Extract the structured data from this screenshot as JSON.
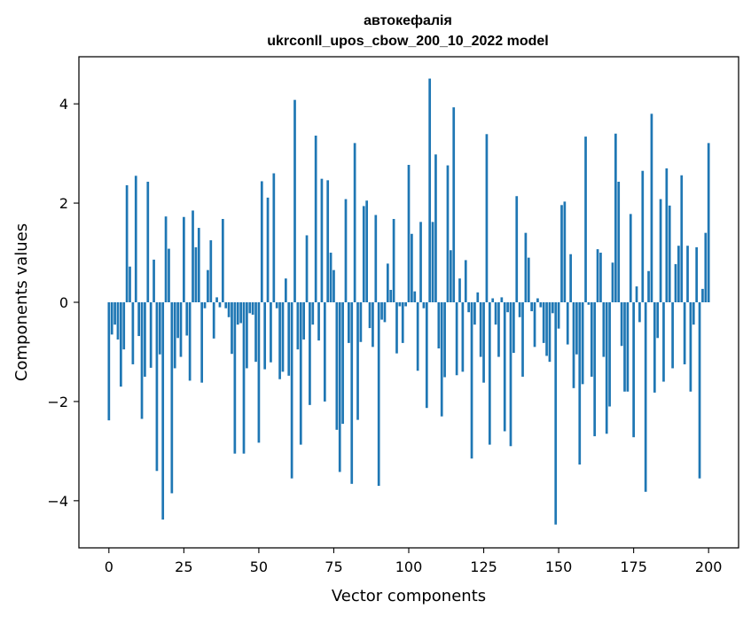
{
  "chart_data": {
    "type": "bar",
    "title": "автокефалія",
    "subtitle": "ukrconll_upos_cbow_200_10_2022 model",
    "xlabel": "Vector components",
    "ylabel": "Components values",
    "xlim": [
      -10,
      210
    ],
    "ylim": [
      -4.95,
      4.95
    ],
    "xticks": [
      0,
      25,
      50,
      75,
      100,
      125,
      150,
      175,
      200
    ],
    "yticks": [
      -4,
      -2,
      0,
      2,
      4
    ],
    "ytick_labels": [
      "−4",
      "−2",
      "0",
      "2",
      "4"
    ],
    "bar_color": "#1f77b4",
    "grid": false,
    "legend": "none",
    "values": [
      -2.38,
      -0.65,
      -0.45,
      -0.75,
      -1.7,
      -0.95,
      2.36,
      0.72,
      -1.25,
      2.55,
      -0.68,
      -2.35,
      -1.5,
      2.43,
      -1.32,
      0.86,
      -3.4,
      -1.05,
      -4.38,
      1.73,
      1.08,
      -3.85,
      -1.33,
      -0.72,
      -1.1,
      1.72,
      -0.67,
      -1.58,
      1.85,
      1.11,
      1.5,
      -1.62,
      -0.12,
      0.65,
      1.25,
      -0.73,
      0.1,
      -0.1,
      1.68,
      -0.12,
      -0.3,
      -1.04,
      -3.05,
      -0.45,
      -0.42,
      -3.05,
      -1.33,
      -0.22,
      -0.25,
      -1.2,
      -2.83,
      2.44,
      -1.35,
      2.11,
      -1.21,
      2.6,
      -0.12,
      -1.55,
      -1.4,
      0.48,
      -1.48,
      -3.55,
      4.08,
      -0.95,
      -2.87,
      -0.75,
      1.35,
      -2.07,
      -0.45,
      3.36,
      -0.77,
      2.49,
      -2.0,
      2.46,
      1.0,
      0.65,
      -2.57,
      -3.42,
      -2.45,
      2.08,
      -0.82,
      -3.66,
      3.21,
      -2.37,
      -0.8,
      1.94,
      2.05,
      -0.52,
      -0.9,
      1.76,
      -3.7,
      -0.35,
      -0.4,
      0.78,
      0.25,
      1.68,
      -1.03,
      -0.08,
      -0.82,
      -0.08,
      2.77,
      1.38,
      0.22,
      -1.38,
      1.62,
      -0.12,
      -2.13,
      4.51,
      1.62,
      2.98,
      -0.93,
      -2.3,
      -1.51,
      2.76,
      1.05,
      3.93,
      -1.47,
      0.48,
      -1.4,
      0.85,
      -0.2,
      -3.15,
      -0.45,
      0.2,
      -1.1,
      -1.62,
      3.39,
      -2.87,
      0.08,
      -0.45,
      -1.1,
      0.1,
      -2.6,
      -0.2,
      -2.9,
      -1.02,
      2.14,
      -0.3,
      -1.5,
      1.4,
      0.9,
      -0.18,
      -0.9,
      0.08,
      -0.1,
      -0.82,
      -1.08,
      -1.2,
      -0.22,
      -4.48,
      -0.53,
      1.96,
      2.03,
      -0.85,
      0.97,
      -1.73,
      -1.05,
      -3.27,
      -1.65,
      3.34,
      -0.05,
      -1.5,
      -2.7,
      1.07,
      1.0,
      -1.1,
      -2.65,
      -2.1,
      0.8,
      3.4,
      2.43,
      -0.88,
      -1.8,
      -1.8,
      1.78,
      -2.72,
      0.32,
      -0.4,
      2.65,
      -3.82,
      0.63,
      3.8,
      -1.82,
      -0.72,
      2.08,
      -1.6,
      2.7,
      1.95,
      -1.33,
      0.77,
      1.14,
      2.56,
      -1.25,
      1.14,
      -1.8,
      -0.45,
      1.11,
      -3.55,
      0.27,
      1.4,
      3.21
    ]
  }
}
